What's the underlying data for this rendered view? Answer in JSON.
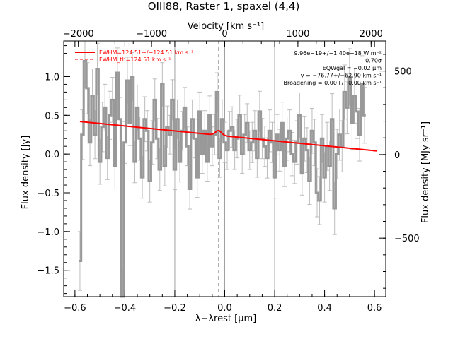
{
  "chart_data": {
    "type": "line",
    "title": "OIII88, Raster 1, spaxel (4,4)",
    "xlabel": "λ−λrest [μm]",
    "ylabel": "Flux density [Jy]",
    "x2label": "Velocity [km s⁻¹]",
    "y2label": "Flux density [MJy sr⁻¹]",
    "xlim": [
      -0.645,
      0.645
    ],
    "ylim": [
      -1.84,
      1.46
    ],
    "x2lim": [
      -2200,
      2200
    ],
    "y2lim": [
      -850,
      680
    ],
    "xticks": [
      -0.6,
      -0.4,
      -0.2,
      0.0,
      0.2,
      0.4,
      0.6
    ],
    "xtick_labels": [
      "−0.6",
      "−0.4",
      "−0.2",
      "0.0",
      "0.2",
      "0.4",
      "0.6"
    ],
    "yticks": [
      -1.5,
      -1.0,
      -0.5,
      0.0,
      0.5,
      1.0
    ],
    "ytick_labels": [
      "−1.5",
      "−1.0",
      "−0.5",
      "0.0",
      "0.5",
      "1.0"
    ],
    "x2ticks": [
      -2000,
      -1000,
      0,
      1000,
      2000
    ],
    "x2tick_labels": [
      "−2000",
      "−1000",
      "0",
      "1000",
      "2000"
    ],
    "y2ticks": [
      -500,
      0,
      500
    ],
    "y2tick_labels": [
      "−500",
      "0",
      "500"
    ],
    "vlines_solid": [
      -0.2,
      0.0,
      0.2
    ],
    "vlines_dashed": [
      -0.025
    ],
    "grid": false,
    "legend": [
      {
        "label": "FWHM=124.51+/−124.51 km s⁻¹",
        "style": "solid",
        "color": "#ff0000"
      },
      {
        "label": "FWHM_th=124.51 km s⁻¹",
        "style": "dashed",
        "color": "#ff0000"
      }
    ],
    "legend_position": "top-left",
    "annotations": [
      "9.96e−19+/−1.40e−18 W m⁻²",
      "0.70σ",
      "EQWgal = −0.02 μm",
      "v = −76.77+/−62.90 km s⁻¹",
      "Broadening = 0.00+/−0.00 km s⁻¹"
    ],
    "series": [
      {
        "type": "step",
        "color": "#999999",
        "x_start": -0.58,
        "x_step": 0.01,
        "values": [
          -1.38,
          0.25,
          1.2,
          0.85,
          0.15,
          0.75,
          0.25,
          1.1,
          -0.1,
          0.35,
          0.6,
          -0.05,
          0.5,
          0.7,
          -0.15,
          1.05,
          0.45,
          -1.85,
          0.15,
          0.95,
          0.4,
          1.0,
          -0.1,
          0.6,
          0.2,
          -0.3,
          0.45,
          0.3,
          -0.35,
          0.15,
          0.7,
          0.2,
          -0.2,
          0.9,
          -0.15,
          0.35,
          0.25,
          0.7,
          -0.2,
          0.45,
          -0.1,
          0.3,
          0.6,
          0.1,
          -0.45,
          0.45,
          0.2,
          -0.3,
          0.55,
          0.0,
          0.3,
          -0.1,
          0.5,
          0.1,
          0.25,
          0.8,
          -0.05,
          0.45,
          0.15,
          0.05,
          0.3,
          0.35,
          0.05,
          0.2,
          0.5,
          0.0,
          0.25,
          0.4,
          0.05,
          0.15,
          0.3,
          -0.05,
          0.55,
          0.2,
          0.1,
          -0.05,
          0.3,
          0.15,
          -0.3,
          0.25,
          0.05,
          0.4,
          -0.15,
          0.2,
          0.3,
          0.0,
          -0.1,
          0.15,
          0.5,
          -0.25,
          0.2,
          0.05,
          -0.35,
          0.3,
          0.15,
          -0.5,
          -0.6,
          0.2,
          -0.3,
          0.1,
          -0.15,
          0.45,
          -0.7,
          0.0,
          0.25,
          0.1,
          0.8,
          0.6,
          1.0,
          0.4,
          0.75,
          0.55,
          0.25,
          0.9,
          0.5
        ],
        "errors": [
          0.38,
          0.32,
          0.34,
          0.33,
          0.3,
          0.35,
          0.31,
          0.33,
          0.29,
          0.32,
          0.3,
          0.28,
          0.31,
          0.29,
          0.3,
          0.32,
          0.28,
          0.36,
          0.27,
          0.3,
          0.29,
          0.31,
          0.27,
          0.29,
          0.28,
          0.27,
          0.29,
          0.26,
          0.27,
          0.28,
          0.27,
          0.26,
          0.27,
          0.28,
          0.26,
          0.27,
          0.25,
          0.26,
          0.26,
          0.25,
          0.26,
          0.25,
          0.26,
          0.25,
          0.26,
          0.25,
          0.25,
          0.26,
          0.25,
          0.25,
          0.26,
          0.25,
          0.25,
          0.25,
          0.26,
          0.25,
          0.25,
          0.25,
          0.26,
          0.25,
          0.25,
          0.26,
          0.25,
          0.25,
          0.26,
          0.25,
          0.26,
          0.25,
          0.25,
          0.26,
          0.26,
          0.25,
          0.26,
          0.26,
          0.26,
          0.26,
          0.27,
          0.26,
          0.27,
          0.26,
          0.27,
          0.27,
          0.27,
          0.28,
          0.27,
          0.28,
          0.28,
          0.28,
          0.29,
          0.28,
          0.29,
          0.29,
          0.3,
          0.29,
          0.3,
          0.31,
          0.31,
          0.31,
          0.32,
          0.31,
          0.32,
          0.33,
          0.34,
          0.32,
          0.33,
          0.33,
          0.35,
          0.34,
          0.36,
          0.34,
          0.35,
          0.35,
          0.34,
          0.37,
          0.36
        ]
      },
      {
        "type": "line",
        "color": "#ff0000",
        "continuum": {
          "x": [
            -0.58,
            0.61
          ],
          "y": [
            0.42,
            0.04
          ]
        },
        "gaussian": {
          "center": -0.025,
          "amplitude": 0.06,
          "sigma": 0.012
        },
        "dashed_profile": {
          "center": -0.025,
          "amplitude": 0.06,
          "sigma": 0.012
        }
      }
    ]
  }
}
